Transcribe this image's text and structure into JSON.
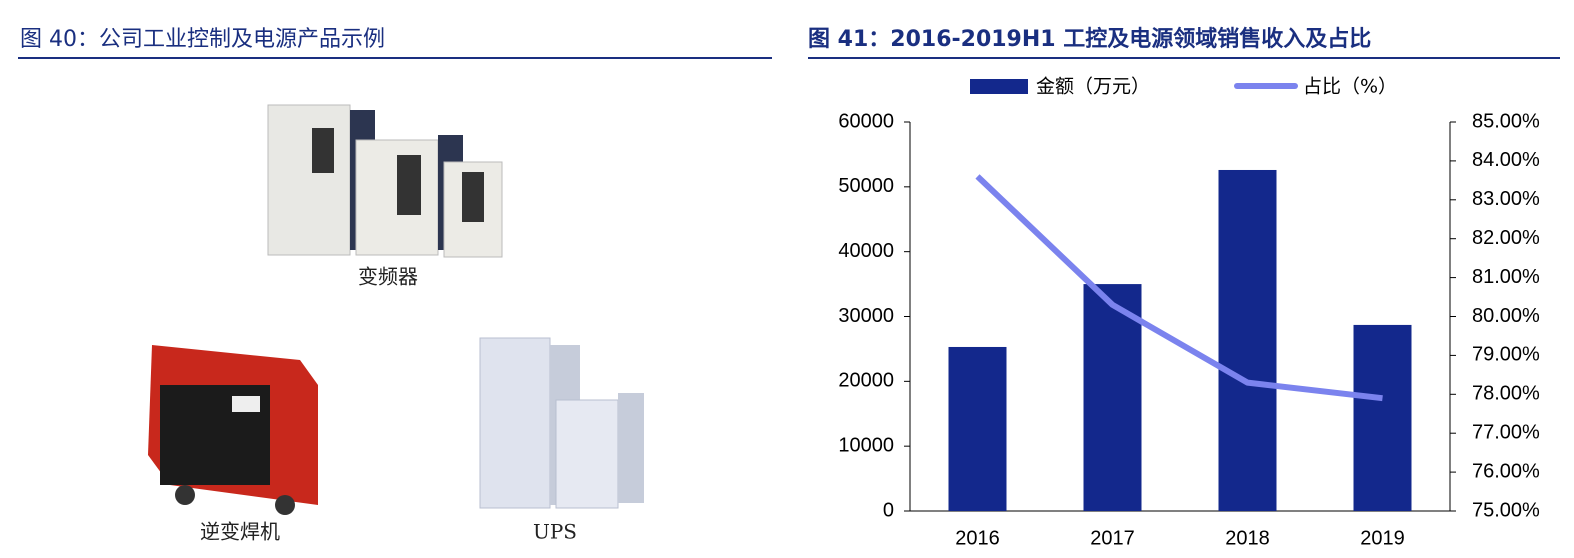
{
  "left": {
    "title": "图 40：公司工业控制及电源产品示例",
    "captions": [
      "变频器",
      "逆变焊机",
      "UPS"
    ]
  },
  "chart_data": {
    "type": "bar_line",
    "title": "图 41：2016-2019H1 工控及电源领域销售收入及占比",
    "categories": [
      "2016",
      "2017",
      "2018",
      "2019"
    ],
    "series": [
      {
        "name": "金额（万元）",
        "type": "bar",
        "color": "#13288c",
        "values": [
          25300,
          35000,
          52600,
          28700
        ]
      },
      {
        "name": "占比（%）",
        "type": "line",
        "axis": "y2",
        "color": "#7b83ee",
        "values": [
          83.6,
          80.3,
          78.3,
          77.9
        ]
      }
    ],
    "ylim": [
      0,
      60000
    ],
    "yticks": [
      0,
      10000,
      20000,
      30000,
      40000,
      50000,
      60000
    ],
    "y2lim": [
      75,
      85
    ],
    "y2ticks": [
      {
        "value": 75,
        "label": "75.00%"
      },
      {
        "value": 76,
        "label": "76.00%"
      },
      {
        "value": 77,
        "label": "77.00%"
      },
      {
        "value": 78,
        "label": "78.00%"
      },
      {
        "value": 79,
        "label": "79.00%"
      },
      {
        "value": 80,
        "label": "80.00%"
      },
      {
        "value": 81,
        "label": "81.00%"
      },
      {
        "value": 82,
        "label": "82.00%"
      },
      {
        "value": 83,
        "label": "83.00%"
      },
      {
        "value": 84,
        "label": "84.00%"
      },
      {
        "value": 85,
        "label": "85.00%"
      }
    ],
    "grid": false,
    "legend": "top"
  }
}
